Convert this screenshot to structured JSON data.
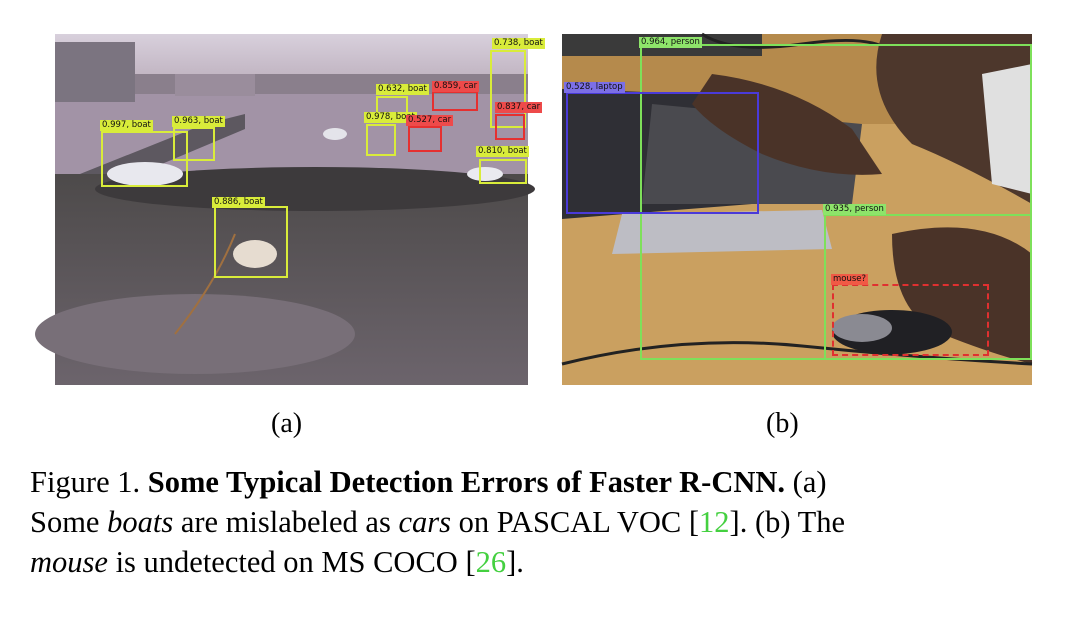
{
  "panel_a": {
    "detections": [
      {
        "label": "0.738, boat",
        "class": "boat"
      },
      {
        "label": "0.632, boat",
        "class": "boat"
      },
      {
        "label": "0.859, car",
        "class": "car"
      },
      {
        "label": "0.837, car",
        "class": "car"
      },
      {
        "label": "0.997, boat",
        "class": "boat"
      },
      {
        "label": "0.963, boat",
        "class": "boat"
      },
      {
        "label": "0.978, boat",
        "class": "boat"
      },
      {
        "label": "0.527, car",
        "class": "car"
      },
      {
        "label": "0.810, boat",
        "class": "boat"
      },
      {
        "label": "0.886, boat",
        "class": "boat"
      }
    ],
    "subcaption": "(a)"
  },
  "panel_b": {
    "detections": [
      {
        "label": "0.964, person",
        "class": "person"
      },
      {
        "label": "0.528, laptop",
        "class": "laptop"
      },
      {
        "label": "0.935, person",
        "class": "person"
      },
      {
        "label": "mouse?",
        "class": "mouse"
      }
    ],
    "subcaption": "(b)"
  },
  "caption": {
    "prefix": "Figure 1.",
    "title": "Some Typical Detection Errors of Faster R-CNN.",
    "part_a_open": "(a)",
    "line2_pre": "Some",
    "em_boats": "boats",
    "line2_mid": "are mislabeled as",
    "em_cars": "cars",
    "line2_post": "on PASCAL VOC [",
    "ref1": "12",
    "line2_end": "]. (b) The",
    "em_mouse": "mouse",
    "line3_mid": "is undetected on MS COCO [",
    "ref2": "26",
    "line3_end": "]."
  },
  "colors": {
    "boat": "#d9ec3a",
    "car": "#e53030",
    "person": "#7ee05a",
    "laptop": "#4a3ad8",
    "mouse": "#e03030",
    "citation": "#44d040"
  }
}
